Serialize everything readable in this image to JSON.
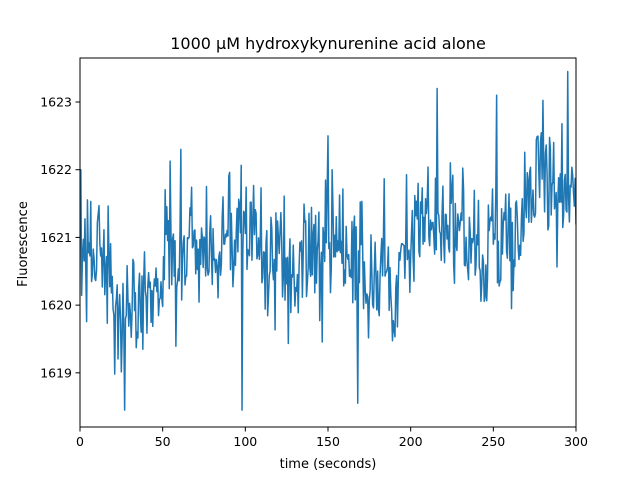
{
  "chart_data": {
    "type": "line",
    "title": "1000 μM hydroxykynurenine acid alone",
    "xlabel": "time (seconds)",
    "ylabel": "Fluorescence",
    "xlim": [
      0,
      300
    ],
    "ylim": [
      1618.2,
      1623.65
    ],
    "xticks": [
      0,
      50,
      100,
      150,
      200,
      250,
      300
    ],
    "yticks": [
      1619,
      1620,
      1621,
      1622,
      1623
    ],
    "grid": false,
    "legend": "none",
    "series": [
      {
        "color": "#1f77b4",
        "sampling_interval_seconds": 0.5,
        "trend": {
          "x": [
            0,
            25,
            50,
            75,
            100,
            125,
            150,
            175,
            200,
            225,
            250,
            275,
            300
          ],
          "y": [
            1620.6,
            1620.1,
            1620.4,
            1620.9,
            1620.6,
            1620.7,
            1620.9,
            1620.3,
            1620.9,
            1621.0,
            1620.9,
            1621.6,
            1621.6
          ]
        },
        "noise_amplitude": 0.85,
        "extremes": [
          {
            "x": 0.5,
            "y": 1622.0
          },
          {
            "x": 27,
            "y": 1618.45
          },
          {
            "x": 61,
            "y": 1622.3
          },
          {
            "x": 98,
            "y": 1618.45
          },
          {
            "x": 150,
            "y": 1622.5
          },
          {
            "x": 168,
            "y": 1618.55
          },
          {
            "x": 216,
            "y": 1623.2
          },
          {
            "x": 252,
            "y": 1623.1
          },
          {
            "x": 295,
            "y": 1623.45
          }
        ]
      }
    ]
  }
}
